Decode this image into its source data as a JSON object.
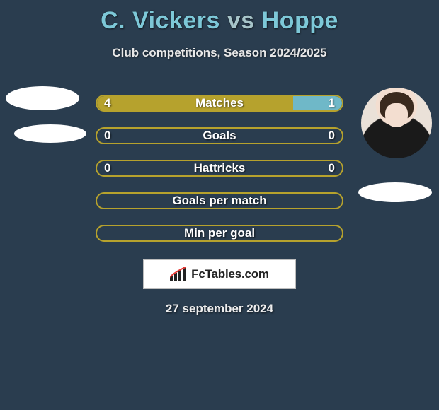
{
  "title": {
    "player1": "C. Vickers",
    "vs": "vs",
    "player2": "Hoppe",
    "title_fontsize": 34,
    "color_p1": "#7dc8d8",
    "color_vs": "#a6c4c9",
    "color_p2": "#7dc8d8"
  },
  "subtitle": "Club competitions, Season 2024/2025",
  "background_color": "#2a3d4f",
  "bar_style": {
    "track_width": 350,
    "track_height": 24,
    "border_radius": 12,
    "border_color": "#b6a22d",
    "fill_left_color": "#b6a22d",
    "fill_right_color": "#6fb8c8",
    "label_color": "#ffffff",
    "label_fontsize": 17
  },
  "rows": [
    {
      "label": "Matches",
      "left": "4",
      "right": "1",
      "left_pct": 80,
      "right_pct": 20,
      "show_values": true
    },
    {
      "label": "Goals",
      "left": "0",
      "right": "0",
      "left_pct": 0,
      "right_pct": 0,
      "show_values": true
    },
    {
      "label": "Hattricks",
      "left": "0",
      "right": "0",
      "left_pct": 0,
      "right_pct": 0,
      "show_values": true
    },
    {
      "label": "Goals per match",
      "left": "",
      "right": "",
      "left_pct": 0,
      "right_pct": 0,
      "show_values": false
    },
    {
      "label": "Min per goal",
      "left": "",
      "right": "",
      "left_pct": 0,
      "right_pct": 0,
      "show_values": false
    }
  ],
  "logo_text": "FcTables.com",
  "date": "27 september 2024"
}
